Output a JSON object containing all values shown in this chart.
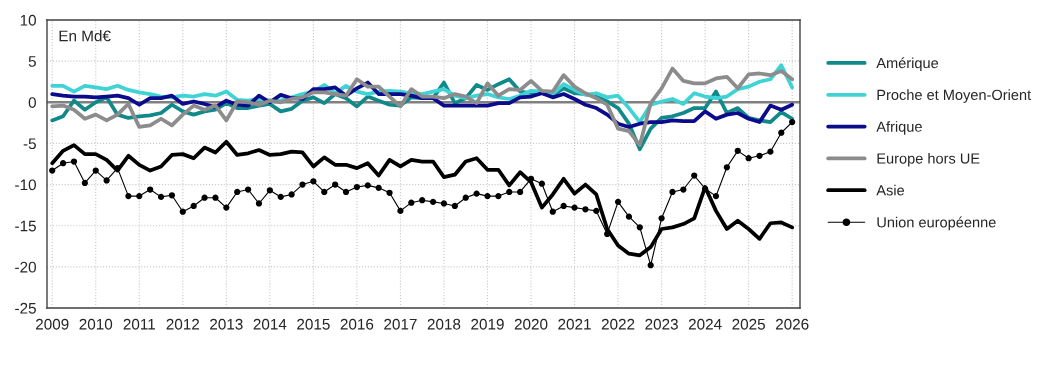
{
  "chart_data": {
    "type": "line",
    "annotations": [
      "En Md€"
    ],
    "x": [
      2009,
      2009.25,
      2009.5,
      2009.75,
      2010,
      2010.25,
      2010.5,
      2010.75,
      2011,
      2011.25,
      2011.5,
      2011.75,
      2012,
      2012.25,
      2012.5,
      2012.75,
      2013,
      2013.25,
      2013.5,
      2013.75,
      2014,
      2014.25,
      2014.5,
      2014.75,
      2015,
      2015.25,
      2015.5,
      2015.75,
      2016,
      2016.25,
      2016.5,
      2016.75,
      2017,
      2017.25,
      2017.5,
      2017.75,
      2018,
      2018.25,
      2018.5,
      2018.75,
      2019,
      2019.25,
      2019.5,
      2019.75,
      2020,
      2020.25,
      2020.5,
      2020.75,
      2021,
      2021.25,
      2021.5,
      2021.75,
      2022,
      2022.25,
      2022.5,
      2022.75,
      2023,
      2023.25,
      2023.5,
      2023.75,
      2024,
      2024.25,
      2024.5,
      2024.75,
      2025,
      2025.25,
      2025.5,
      2025.75,
      2026
    ],
    "series": [
      {
        "name": "Amérique",
        "color": "#11898a",
        "values": [
          -2.2,
          -1.7,
          0.2,
          -0.9,
          0.0,
          0.6,
          -1.5,
          -1.9,
          -1.7,
          -1.6,
          -1.3,
          -0.3,
          -1.1,
          -1.5,
          -1.1,
          -0.9,
          -0.1,
          -0.7,
          -0.7,
          -0.4,
          -0.2,
          -1.1,
          -0.8,
          0.2,
          0.6,
          -0.1,
          1.0,
          0.5,
          -0.5,
          0.7,
          0.2,
          -0.3,
          -0.4,
          0.6,
          0.5,
          0.5,
          2.4,
          -0.1,
          0.5,
          2.1,
          1.5,
          2.2,
          2.8,
          1.3,
          1.1,
          1.3,
          0.9,
          1.7,
          1.1,
          1.0,
          0.7,
          0.1,
          -0.7,
          -2.6,
          -5.7,
          -3.2,
          -1.9,
          -1.7,
          -1.3,
          -0.7,
          -0.7,
          1.3,
          -1.3,
          -0.7,
          -1.9,
          -2.2,
          -2.4,
          -1.2,
          -2.0
        ]
      },
      {
        "name": "Proche et Moyen-Orient",
        "color": "#3fd3d6",
        "values": [
          2.0,
          2.0,
          1.3,
          2.0,
          1.8,
          1.6,
          2.0,
          1.5,
          1.2,
          1.0,
          0.7,
          0.6,
          0.8,
          0.7,
          1.0,
          0.8,
          1.3,
          0.3,
          0.2,
          0.4,
          0.2,
          0.2,
          0.6,
          1.0,
          1.3,
          2.1,
          1.1,
          2.0,
          1.3,
          1.0,
          1.3,
          1.4,
          1.3,
          1.1,
          1.0,
          1.3,
          1.6,
          0.8,
          0.5,
          0.8,
          1.0,
          0.6,
          0.4,
          0.8,
          1.4,
          1.3,
          1.0,
          2.2,
          1.5,
          0.9,
          1.1,
          0.6,
          0.8,
          -0.7,
          -2.4,
          -0.3,
          0.1,
          0.4,
          -0.2,
          1.1,
          0.7,
          0.5,
          0.7,
          1.6,
          1.9,
          2.5,
          2.8,
          4.5,
          1.8
        ]
      },
      {
        "name": "Afrique",
        "color": "#0b0b8c",
        "values": [
          1.0,
          0.8,
          0.7,
          0.7,
          0.6,
          0.7,
          0.8,
          0.5,
          -0.3,
          0.5,
          0.5,
          0.8,
          -0.2,
          0.1,
          -0.2,
          -0.6,
          0.2,
          -0.3,
          -0.4,
          0.8,
          0.0,
          0.9,
          0.5,
          0.4,
          1.6,
          1.6,
          1.8,
          0.8,
          1.7,
          2.4,
          1.0,
          1.0,
          1.0,
          0.8,
          0.5,
          0.5,
          -0.4,
          -0.4,
          -0.4,
          -0.4,
          -0.4,
          -0.1,
          -0.1,
          0.6,
          0.7,
          1.1,
          0.6,
          1.0,
          0.4,
          -0.3,
          -0.7,
          -1.5,
          -2.6,
          -3.0,
          -2.6,
          -2.4,
          -2.4,
          -2.2,
          -2.3,
          -2.3,
          -1.1,
          -2.0,
          -1.5,
          -1.3,
          -2.0,
          -2.4,
          -0.4,
          -0.9,
          -0.3
        ]
      },
      {
        "name": "Europe hors UE",
        "color": "#8c8c8c",
        "values": [
          -0.5,
          -0.4,
          -0.9,
          -2.0,
          -1.5,
          -2.2,
          -1.5,
          -0.2,
          -3.0,
          -2.8,
          -2.0,
          -2.8,
          -1.5,
          -0.4,
          -0.9,
          -0.4,
          -2.2,
          0.1,
          0.0,
          -0.3,
          0.2,
          0.0,
          0.4,
          0.6,
          1.2,
          1.2,
          1.0,
          0.8,
          2.8,
          1.9,
          1.9,
          0.7,
          -0.5,
          1.6,
          0.7,
          0.7,
          0.5,
          1.0,
          0.7,
          -0.1,
          2.3,
          0.8,
          1.6,
          1.5,
          2.6,
          1.4,
          1.3,
          3.3,
          1.9,
          1.1,
          0.5,
          -0.3,
          -3.2,
          -3.5,
          -5.2,
          -0.1,
          1.7,
          4.1,
          2.6,
          2.3,
          2.3,
          2.9,
          3.1,
          1.7,
          3.4,
          3.5,
          3.3,
          3.8,
          2.8
        ]
      },
      {
        "name": "Asie",
        "color": "#000000",
        "values": [
          -7.4,
          -5.9,
          -5.2,
          -6.3,
          -6.3,
          -7.0,
          -8.3,
          -6.5,
          -7.6,
          -8.3,
          -7.8,
          -6.4,
          -6.3,
          -6.8,
          -5.5,
          -6.1,
          -4.8,
          -6.4,
          -6.2,
          -5.8,
          -6.4,
          -6.3,
          -6.0,
          -6.1,
          -7.8,
          -6.7,
          -7.6,
          -7.6,
          -8.0,
          -7.4,
          -8.9,
          -7.0,
          -7.8,
          -7.0,
          -7.2,
          -7.2,
          -9.1,
          -8.8,
          -7.2,
          -6.8,
          -8.2,
          -8.2,
          -10.1,
          -8.5,
          -9.7,
          -12.8,
          -11.2,
          -9.3,
          -11.1,
          -10.0,
          -11.2,
          -15.4,
          -17.4,
          -18.4,
          -18.6,
          -17.6,
          -15.4,
          -15.2,
          -14.8,
          -14.1,
          -10.3,
          -13.2,
          -15.4,
          -14.4,
          -15.4,
          -16.6,
          -14.7,
          -14.6,
          -15.2
        ]
      },
      {
        "name": "Union européenne",
        "color": "#000000",
        "marker": "circle",
        "values": [
          -8.3,
          -7.4,
          -7.2,
          -9.8,
          -8.3,
          -9.5,
          -8.0,
          -11.4,
          -11.4,
          -10.6,
          -11.5,
          -11.3,
          -13.3,
          -12.6,
          -11.6,
          -11.6,
          -12.8,
          -10.9,
          -10.6,
          -12.3,
          -10.7,
          -11.5,
          -11.2,
          -10.0,
          -9.6,
          -10.9,
          -10.0,
          -10.9,
          -10.3,
          -10.1,
          -10.4,
          -11.0,
          -13.2,
          -12.2,
          -11.9,
          -12.1,
          -12.3,
          -12.6,
          -11.6,
          -11.1,
          -11.4,
          -11.4,
          -10.9,
          -10.9,
          -9.3,
          -9.9,
          -13.3,
          -12.6,
          -12.8,
          -13.0,
          -13.2,
          -16.0,
          -12.1,
          -13.9,
          -15.2,
          -19.8,
          -14.1,
          -10.9,
          -10.6,
          -8.9,
          -10.5,
          -11.4,
          -7.9,
          -5.9,
          -6.8,
          -6.5,
          -6.0,
          -3.7,
          -2.4
        ]
      }
    ],
    "xlim": [
      2008.88,
      2026.18
    ],
    "ylim": [
      -25,
      10
    ],
    "xticks": [
      2009,
      2010,
      2011,
      2012,
      2013,
      2014,
      2015,
      2016,
      2017,
      2018,
      2019,
      2020,
      2021,
      2022,
      2023,
      2024,
      2025,
      2026
    ],
    "yticks": [
      -25,
      -20,
      -15,
      -10,
      -5,
      0,
      5,
      10
    ],
    "ref_lines": [
      {
        "axis": "y",
        "value": 0,
        "color": "#808080"
      }
    ],
    "grid": true,
    "legend": "right"
  }
}
